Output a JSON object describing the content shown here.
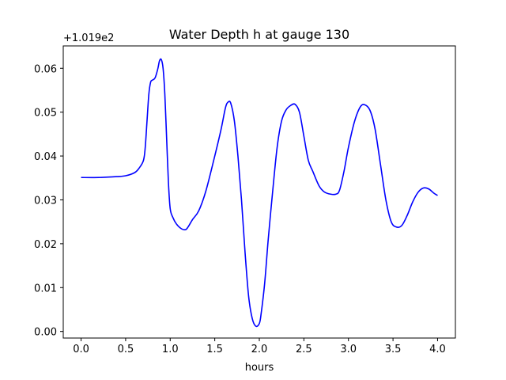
{
  "chart_data": {
    "type": "line",
    "title": "Water Depth h at gauge 130",
    "xlabel": "hours",
    "ylabel": "",
    "offset_label": "+1.019e2",
    "xlim": [
      -0.2,
      4.2
    ],
    "ylim": [
      -0.0015,
      0.0651
    ],
    "xticks": [
      0.0,
      0.5,
      1.0,
      1.5,
      2.0,
      2.5,
      3.0,
      3.5,
      4.0
    ],
    "xtick_labels": [
      "0.0",
      "0.5",
      "1.0",
      "1.5",
      "2.0",
      "2.5",
      "3.0",
      "3.5",
      "4.0"
    ],
    "yticks": [
      0.0,
      0.01,
      0.02,
      0.03,
      0.04,
      0.05,
      0.06
    ],
    "ytick_labels": [
      "0.00",
      "0.01",
      "0.02",
      "0.03",
      "0.04",
      "0.05",
      "0.06"
    ],
    "grid": false,
    "legend": "none",
    "color": "#0000ff",
    "series": [
      {
        "x": [
          0.0,
          0.2,
          0.4,
          0.5,
          0.6,
          0.65,
          0.7,
          0.72,
          0.74,
          0.76,
          0.78,
          0.8,
          0.83,
          0.86,
          0.88,
          0.9,
          0.92,
          0.94,
          0.96,
          0.98,
          1.0,
          1.03,
          1.07,
          1.12,
          1.17,
          1.2,
          1.25,
          1.32,
          1.4,
          1.5,
          1.57,
          1.62,
          1.65,
          1.68,
          1.72,
          1.76,
          1.8,
          1.84,
          1.88,
          1.92,
          1.96,
          2.0,
          2.02,
          2.06,
          2.1,
          2.15,
          2.2,
          2.25,
          2.3,
          2.35,
          2.4,
          2.45,
          2.5,
          2.55,
          2.6,
          2.67,
          2.73,
          2.8,
          2.86,
          2.9,
          2.95,
          3.0,
          3.07,
          3.14,
          3.2,
          3.25,
          3.3,
          3.36,
          3.42,
          3.48,
          3.54,
          3.6,
          3.66,
          3.72,
          3.78,
          3.84,
          3.9,
          3.96,
          4.0
        ],
        "y": [
          0.0351,
          0.0351,
          0.0353,
          0.0355,
          0.0362,
          0.0372,
          0.039,
          0.042,
          0.048,
          0.054,
          0.0568,
          0.0573,
          0.0578,
          0.0598,
          0.0617,
          0.062,
          0.06,
          0.054,
          0.044,
          0.034,
          0.028,
          0.026,
          0.0245,
          0.0235,
          0.0232,
          0.0238,
          0.0255,
          0.0275,
          0.032,
          0.04,
          0.046,
          0.051,
          0.0523,
          0.052,
          0.048,
          0.04,
          0.03,
          0.018,
          0.008,
          0.003,
          0.0012,
          0.0018,
          0.004,
          0.011,
          0.021,
          0.032,
          0.042,
          0.048,
          0.0505,
          0.0515,
          0.0518,
          0.05,
          0.0445,
          0.039,
          0.0365,
          0.0332,
          0.0318,
          0.0313,
          0.0313,
          0.0322,
          0.0365,
          0.042,
          0.048,
          0.0514,
          0.0515,
          0.05,
          0.046,
          0.038,
          0.03,
          0.025,
          0.0238,
          0.0242,
          0.0265,
          0.0295,
          0.0317,
          0.0327,
          0.0325,
          0.0315,
          0.031
        ]
      }
    ]
  }
}
